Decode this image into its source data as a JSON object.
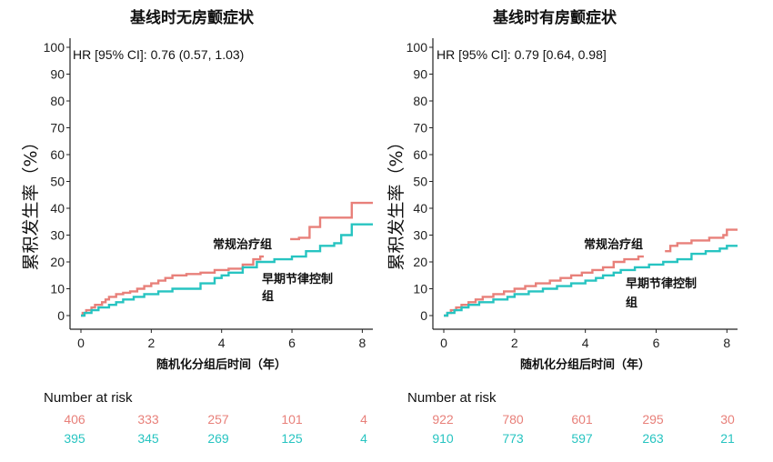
{
  "colors": {
    "conventional": "#E8807A",
    "early": "#27C4C1",
    "axis": "#222222"
  },
  "chart_data": [
    {
      "type": "line",
      "title": "基线时无房颤症状",
      "xlabel": "随机化分组后时间（年）",
      "ylabel": "累积发生率（%）",
      "xlim": [
        0,
        8.3
      ],
      "ylim": [
        0,
        100
      ],
      "xticks": [
        0,
        2,
        4,
        6,
        8
      ],
      "yticks": [
        0,
        10,
        20,
        30,
        40,
        50,
        60,
        70,
        80,
        90,
        100
      ],
      "hr_text": "HR [95% CI]:  0.76 (0.57, 1.03)",
      "series": [
        {
          "name": "常规治疗组",
          "color_key": "conventional",
          "points": [
            [
              0,
              0
            ],
            [
              0.05,
              1
            ],
            [
              0.15,
              2
            ],
            [
              0.3,
              3
            ],
            [
              0.4,
              4
            ],
            [
              0.6,
              5
            ],
            [
              0.7,
              6
            ],
            [
              0.8,
              7
            ],
            [
              1.0,
              8
            ],
            [
              1.2,
              8.5
            ],
            [
              1.4,
              9
            ],
            [
              1.6,
              10
            ],
            [
              1.8,
              11
            ],
            [
              2.0,
              12
            ],
            [
              2.2,
              13
            ],
            [
              2.4,
              14
            ],
            [
              2.6,
              15
            ],
            [
              3.0,
              15.5
            ],
            [
              3.4,
              16
            ],
            [
              3.8,
              17
            ],
            [
              4.2,
              17.5
            ],
            [
              4.6,
              19
            ],
            [
              4.9,
              21
            ],
            [
              5.1,
              22
            ],
            [
              5.2,
              22
            ]
          ],
          "points_late": [
            [
              5.95,
              28.5
            ],
            [
              6.2,
              29
            ],
            [
              6.5,
              33
            ],
            [
              6.8,
              36.5
            ],
            [
              7.2,
              36.5
            ],
            [
              7.7,
              42
            ],
            [
              8.3,
              42
            ]
          ],
          "label": "常规治疗组"
        },
        {
          "name": "早期节律控制组",
          "color_key": "early",
          "points": [
            [
              0,
              0
            ],
            [
              0.1,
              1
            ],
            [
              0.3,
              2
            ],
            [
              0.5,
              3
            ],
            [
              0.8,
              4
            ],
            [
              1.0,
              5
            ],
            [
              1.2,
              6
            ],
            [
              1.5,
              7
            ],
            [
              1.8,
              8
            ],
            [
              2.2,
              9
            ],
            [
              2.6,
              10
            ],
            [
              3.0,
              10
            ],
            [
              3.4,
              12
            ],
            [
              3.8,
              14
            ],
            [
              4.0,
              15
            ],
            [
              4.2,
              16
            ],
            [
              4.6,
              18
            ],
            [
              5.0,
              20
            ],
            [
              5.5,
              21
            ],
            [
              6.0,
              22
            ],
            [
              6.4,
              24
            ],
            [
              6.8,
              26
            ],
            [
              7.2,
              27
            ],
            [
              7.4,
              30
            ],
            [
              7.7,
              34
            ],
            [
              8.3,
              34
            ]
          ],
          "label": "早期节律控制组"
        }
      ],
      "risk_table": {
        "title": "Number at risk",
        "conventional": [
          "406",
          "333",
          "257",
          "101",
          "4"
        ],
        "early": [
          "395",
          "345",
          "269",
          "125",
          "4"
        ]
      }
    },
    {
      "type": "line",
      "title": "基线时有房颤症状",
      "xlabel": "随机化分组后时间（年）",
      "ylabel": "累积发生率（%）",
      "xlim": [
        0,
        8.3
      ],
      "ylim": [
        0,
        100
      ],
      "xticks": [
        0,
        2,
        4,
        6,
        8
      ],
      "yticks": [
        0,
        10,
        20,
        30,
        40,
        50,
        60,
        70,
        80,
        90,
        100
      ],
      "hr_text": "HR [95% CI]:  0.79 [0.64, 0.98]",
      "series": [
        {
          "name": "常规治疗组",
          "color_key": "conventional",
          "points": [
            [
              0,
              0
            ],
            [
              0.1,
              1
            ],
            [
              0.2,
              2
            ],
            [
              0.35,
              3
            ],
            [
              0.5,
              4
            ],
            [
              0.7,
              5
            ],
            [
              0.9,
              6
            ],
            [
              1.1,
              7
            ],
            [
              1.4,
              8
            ],
            [
              1.7,
              9
            ],
            [
              2.0,
              10
            ],
            [
              2.3,
              11
            ],
            [
              2.6,
              12
            ],
            [
              3.0,
              13
            ],
            [
              3.3,
              14
            ],
            [
              3.6,
              15
            ],
            [
              3.9,
              16
            ],
            [
              4.2,
              17
            ],
            [
              4.5,
              18
            ],
            [
              4.8,
              20
            ],
            [
              5.1,
              21
            ],
            [
              5.5,
              22
            ],
            [
              5.65,
              22
            ]
          ],
          "points_late": [
            [
              6.25,
              24
            ],
            [
              6.4,
              26
            ],
            [
              6.6,
              27
            ],
            [
              7.0,
              28
            ],
            [
              7.5,
              29
            ],
            [
              7.9,
              30
            ],
            [
              8.0,
              32
            ],
            [
              8.3,
              32
            ]
          ],
          "label": "常规治疗组"
        },
        {
          "name": "早期节律控制组",
          "color_key": "early",
          "points": [
            [
              0,
              0
            ],
            [
              0.1,
              1
            ],
            [
              0.3,
              2
            ],
            [
              0.5,
              3
            ],
            [
              0.7,
              4
            ],
            [
              1.0,
              5
            ],
            [
              1.4,
              6
            ],
            [
              1.8,
              7
            ],
            [
              2.0,
              8
            ],
            [
              2.4,
              9
            ],
            [
              2.8,
              10
            ],
            [
              3.2,
              11
            ],
            [
              3.6,
              12
            ],
            [
              4.0,
              13
            ],
            [
              4.3,
              14
            ],
            [
              4.5,
              15
            ],
            [
              4.8,
              16
            ],
            [
              5.0,
              17
            ],
            [
              5.4,
              18
            ],
            [
              5.8,
              19
            ],
            [
              6.2,
              20
            ],
            [
              6.6,
              21
            ],
            [
              7.0,
              23
            ],
            [
              7.4,
              24
            ],
            [
              7.8,
              25
            ],
            [
              8.0,
              26
            ],
            [
              8.3,
              26
            ]
          ],
          "label": "早期节律控制组"
        }
      ],
      "risk_table": {
        "title": "Number at risk",
        "conventional": [
          "922",
          "780",
          "601",
          "295",
          "30"
        ],
        "early": [
          "910",
          "773",
          "597",
          "263",
          "21"
        ]
      }
    }
  ]
}
